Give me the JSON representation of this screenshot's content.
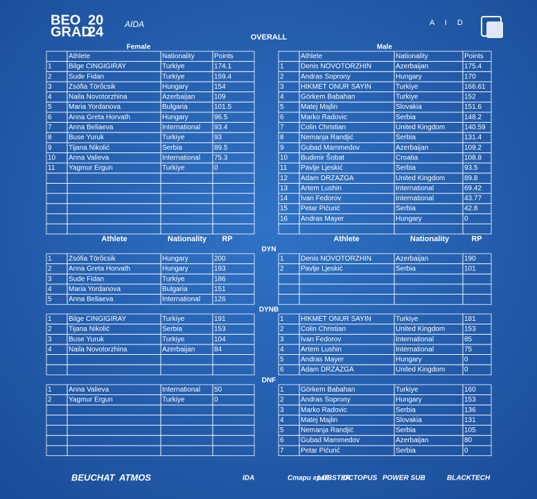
{
  "header": {
    "logo": [
      "BEO",
      "20",
      "GRAD",
      "24"
    ],
    "aida": "AIDA",
    "aida_right": "A I D"
  },
  "title": "OVERALL",
  "overall": {
    "female": {
      "title": "Female",
      "columns": [
        "Athlete",
        "Nationality",
        "Points"
      ],
      "rows": [
        [
          1,
          "Bilge CINGIGIRAY",
          "Turkiye",
          174.1
        ],
        [
          2,
          "Sude Fidan",
          "Turkiye",
          159.4
        ],
        [
          3,
          "Zsófia Törőcsik",
          "Hungary",
          154
        ],
        [
          4,
          "Naila Novotorzhina",
          "Azerbaijan",
          109
        ],
        [
          5,
          "Maria Yordanova",
          "Bulgaria",
          101.5
        ],
        [
          6,
          "Anna Greta Horvath",
          "Hungary",
          96.5
        ],
        [
          7,
          "Anna Beliaeva",
          "International",
          93.4
        ],
        [
          8,
          "Buse Yuruk",
          "Turkiye",
          93
        ],
        [
          9,
          "Tijana Nikolić",
          "Serbia",
          89.5
        ],
        [
          10,
          "Anna Valieva",
          "International",
          75.3
        ],
        [
          11,
          "Yagmur Ergun",
          "Turkiye",
          0
        ]
      ]
    },
    "male": {
      "title": "Male",
      "columns": [
        "Athlete",
        "Nationality",
        "Points"
      ],
      "rows": [
        [
          1,
          "Denis NOVOTORZHIN",
          "Azerbaijan",
          175.4
        ],
        [
          2,
          "Andras Soprony",
          "Hungary",
          170
        ],
        [
          3,
          "HIKMET ONUR SAYIN",
          "Turkiye",
          166.61
        ],
        [
          4,
          "Görkem Babahan",
          "Turkiye",
          152
        ],
        [
          5,
          "Matej Majlin",
          "Slovakia",
          151.6
        ],
        [
          6,
          "Marko Radovic",
          "Serbia",
          148.2
        ],
        [
          7,
          "Colin Christian",
          "United Kingdom",
          140.59
        ],
        [
          8,
          "Nemanja Randjić",
          "Serbia",
          131.4
        ],
        [
          9,
          "Gubad Mammedov",
          "Azerbaijan",
          109.2
        ],
        [
          10,
          "Budimir Šobat",
          "Croatia",
          108.8
        ],
        [
          11,
          "Pavlje Ljeskić",
          "Serbia",
          93.5
        ],
        [
          12,
          "Adam DRZAZGA",
          "United Kingdom",
          89.8
        ],
        [
          13,
          "Artem Lushin",
          "International",
          69.42
        ],
        [
          14,
          "Ivan Fedorov",
          "International",
          43.77
        ],
        [
          15,
          "Petar Pićurić",
          "Serbia",
          42.8
        ],
        [
          16,
          "Andras Mayer",
          "Hungary",
          0
        ]
      ]
    }
  },
  "disciplines_header": {
    "female": [
      "Athlete",
      "Nationality",
      "RP"
    ],
    "male": [
      "Athlete",
      "Nationality",
      "RP"
    ]
  },
  "disciplines": [
    {
      "name": "DYN",
      "female": [
        [
          1,
          "Zsófia Törőcsik",
          "Hungary",
          200
        ],
        [
          2,
          "Anna Greta Horvath",
          "Hungary",
          193
        ],
        [
          3,
          "Sude Fidan",
          "Turkiye",
          186
        ],
        [
          4,
          "Maria Yordanova",
          "Bulgaria",
          151
        ],
        [
          5,
          "Anna Beliaeva",
          "International",
          126
        ]
      ],
      "male": [
        [
          1,
          "Denis NOVOTORZHIN",
          "Azerbaijan",
          190
        ],
        [
          2,
          "Pavlje Ljeskić",
          "Serbia",
          101
        ]
      ]
    },
    {
      "name": "DYNB",
      "female": [
        [
          1,
          "Bilge CINGIGIRAY",
          "Turkiye",
          191
        ],
        [
          2,
          "Tijana Nikolić",
          "Serbia",
          153
        ],
        [
          3,
          "Buse Yuruk",
          "Turkiye",
          104
        ],
        [
          4,
          "Naila Novotorzhina",
          "Azerbaijan",
          84
        ]
      ],
      "male": [
        [
          1,
          "HIKMET ONUR SAYIN",
          "Turkiye",
          181
        ],
        [
          2,
          "Colin Christian",
          "United Kingdom",
          153
        ],
        [
          3,
          "Ivan Fedorov",
          "International",
          85
        ],
        [
          4,
          "Artem Lushin",
          "International",
          75
        ],
        [
          5,
          "Andras Mayer",
          "Hungary",
          0
        ],
        [
          6,
          "Adam DRZAZGA",
          "United Kingdom",
          0
        ]
      ]
    },
    {
      "name": "DNF",
      "female": [
        [
          1,
          "Anna Valieva",
          "International",
          50
        ],
        [
          2,
          "Yagmur Ergun",
          "Turkiye",
          0
        ]
      ],
      "male": [
        [
          1,
          "Görkem Babahan",
          "Turkiye",
          160
        ],
        [
          2,
          "Andras Soprony",
          "Hungary",
          153
        ],
        [
          3,
          "Marko Radovic",
          "Serbia",
          136
        ],
        [
          4,
          "Matej Majlin",
          "Slovakia",
          131
        ],
        [
          5,
          "Nemanja Randjić",
          "Serbia",
          105
        ],
        [
          6,
          "Gubad Mammedov",
          "Azerbaijan",
          80
        ],
        [
          7,
          "Petar Pićurić",
          "Serbia",
          0
        ]
      ]
    }
  ],
  "sponsors": [
    "BEUCHAT",
    "ATMOS",
    "IDA",
    "Стари град",
    "LOBSTER",
    "OCTOPUS",
    "POWER SUB",
    "BLACKTECH"
  ]
}
